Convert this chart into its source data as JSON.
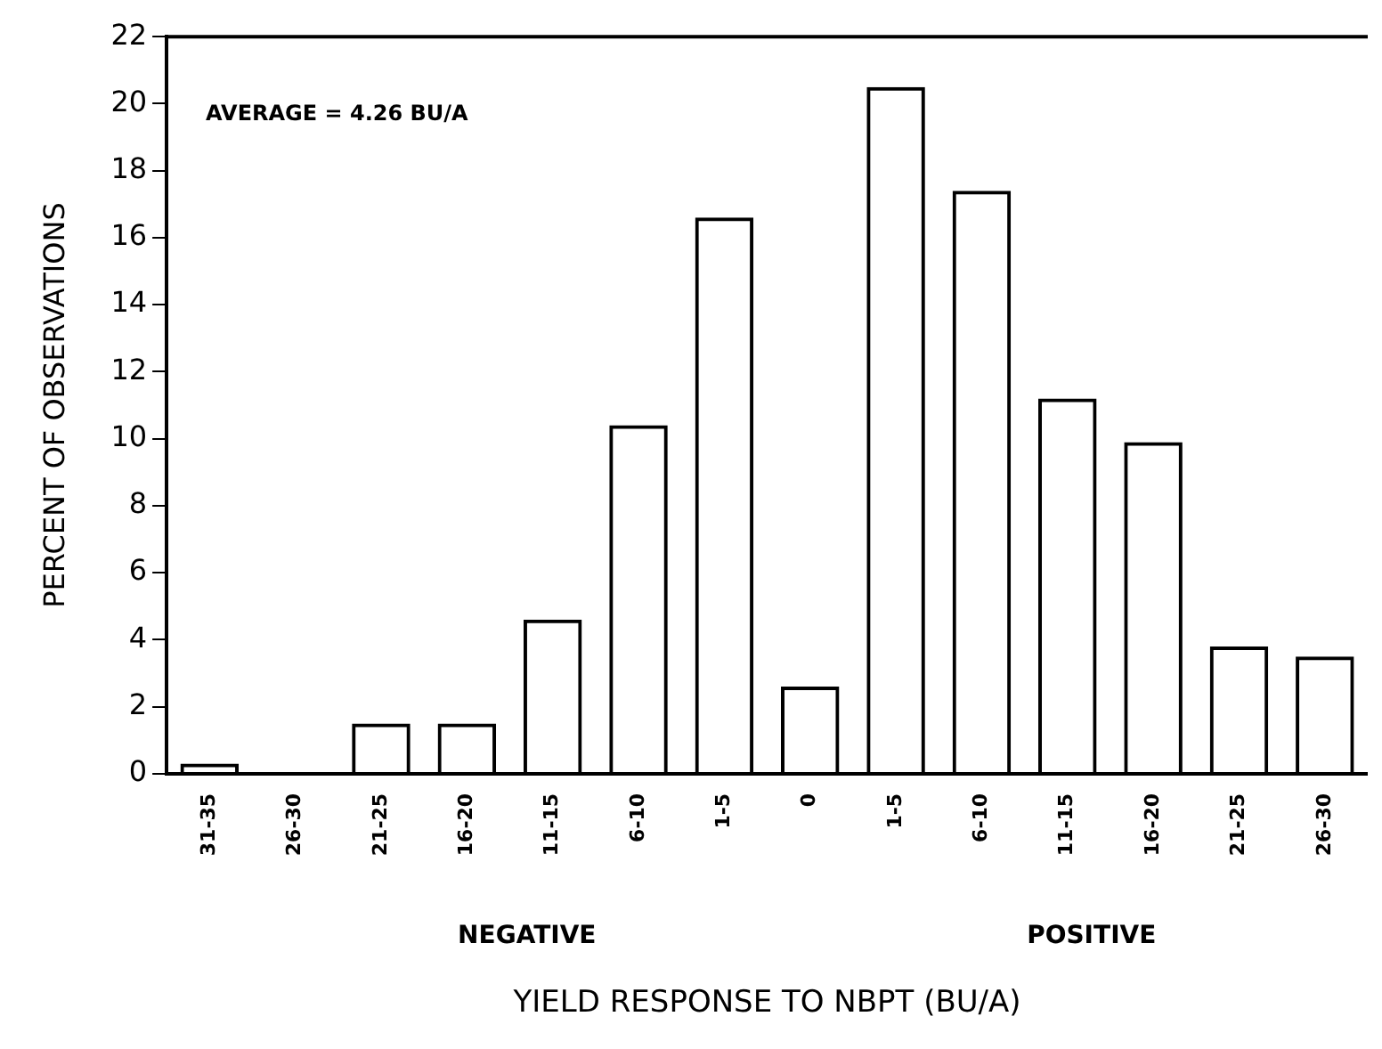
{
  "chart_data": {
    "type": "bar",
    "xlabel": "YIELD RESPONSE TO NBPT (BU/A)",
    "ylabel": "PERCENT OF OBSERVATIONS",
    "categories": [
      "31-35",
      "26-30",
      "21-25",
      "16-20",
      "11-15",
      "6-10",
      "1-5",
      "0",
      "1-5",
      "6-10",
      "11-15",
      "16-20",
      "21-25",
      "26-30"
    ],
    "values": [
      0.3,
      0,
      1.5,
      1.5,
      4.6,
      10.4,
      16.6,
      2.6,
      20.5,
      17.4,
      11.2,
      9.9,
      3.8,
      3.5
    ],
    "color": "#000000",
    "ylim": [
      0,
      22
    ],
    "yticks": [
      0,
      2,
      4,
      6,
      8,
      10,
      12,
      14,
      16,
      18,
      20,
      22
    ],
    "grid": false,
    "legend": false,
    "annotations": [
      "AVERAGE = 4.26 BU/A",
      "NEGATIVE",
      "POSITIVE"
    ]
  }
}
